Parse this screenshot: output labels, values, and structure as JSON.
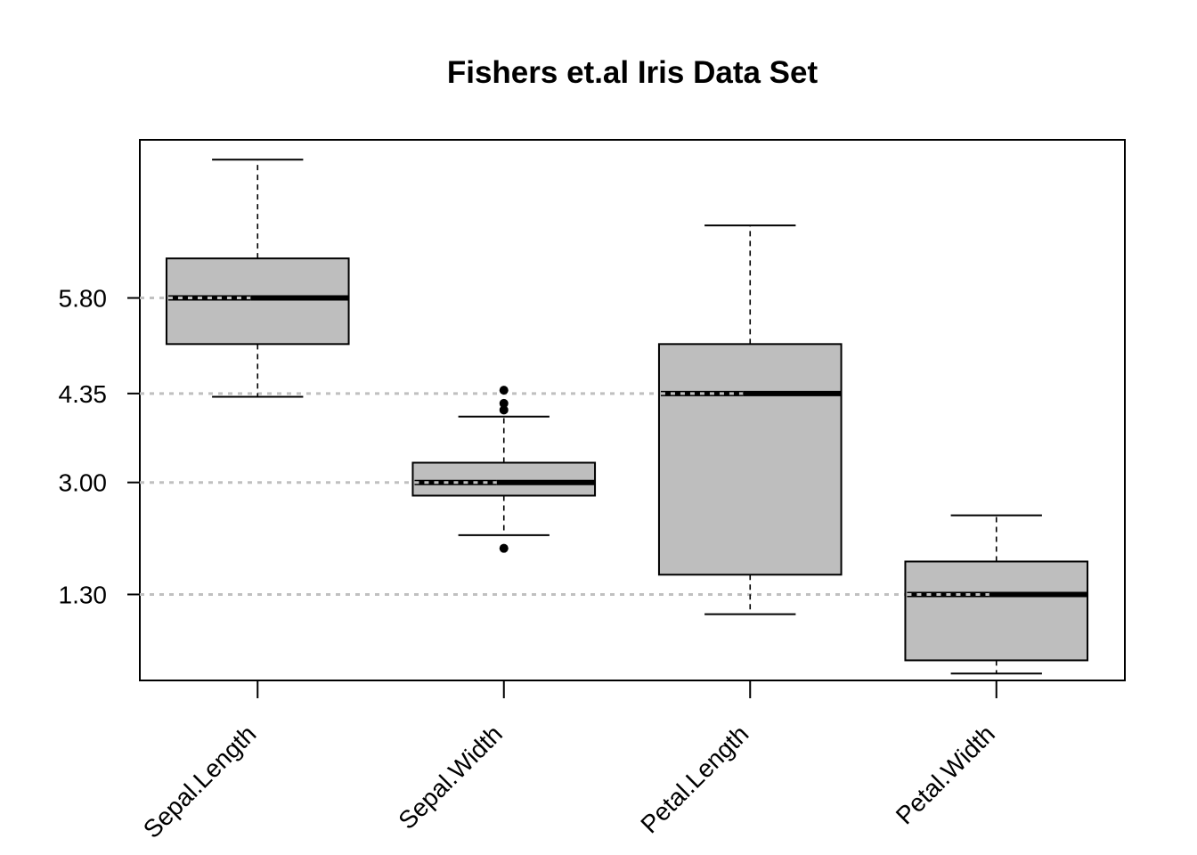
{
  "chart_data": {
    "type": "box",
    "title": "Fishers et.al Iris Data Set",
    "xlabel": "",
    "ylabel": "",
    "categories": [
      "Sepal.Length",
      "Sepal.Width",
      "Petal.Length",
      "Petal.Width"
    ],
    "boxes": [
      {
        "name": "Sepal.Length",
        "whisker_low": 4.3,
        "q1": 5.1,
        "median": 5.8,
        "q3": 6.4,
        "whisker_high": 7.9,
        "outliers": []
      },
      {
        "name": "Sepal.Width",
        "whisker_low": 2.2,
        "q1": 2.8,
        "median": 3.0,
        "q3": 3.3,
        "whisker_high": 4.0,
        "outliers": [
          2.0,
          4.1,
          4.2,
          4.4
        ]
      },
      {
        "name": "Petal.Length",
        "whisker_low": 1.0,
        "q1": 1.6,
        "median": 4.35,
        "q3": 5.1,
        "whisker_high": 6.9,
        "outliers": []
      },
      {
        "name": "Petal.Width",
        "whisker_low": 0.1,
        "q1": 0.3,
        "median": 1.3,
        "q3": 1.8,
        "whisker_high": 2.5,
        "outliers": []
      }
    ],
    "y_ticks": [
      "1.30",
      "3.00",
      "4.35",
      "5.80"
    ],
    "reference_lines": [
      1.3,
      3.0,
      4.35,
      5.8
    ],
    "ylim": [
      -0.005,
      8.2
    ],
    "grid": false,
    "legend": "none",
    "colors": {
      "box_fill": "#bebebe",
      "box_stroke": "#000000",
      "median": "#000000",
      "reference_line": "#c0c0c0",
      "outlier": "#000000"
    }
  }
}
